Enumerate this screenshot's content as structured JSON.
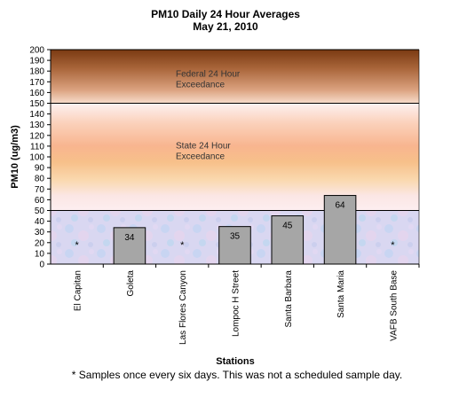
{
  "chart_data": {
    "type": "bar",
    "title": "PM10 Daily 24 Hour Averages",
    "subtitle": "May 21, 2010",
    "xlabel": "Stations",
    "ylabel": "PM10 (ug/m3)",
    "ylim": [
      0,
      200
    ],
    "ytick_step": 10,
    "categories": [
      "El Capitan",
      "Goleta",
      "Las Flores Canyon",
      "Lompoc H Street",
      "Santa Barbara",
      "Santa Maria",
      "VAFB South Base"
    ],
    "values": [
      null,
      34,
      null,
      35,
      45,
      64,
      null
    ],
    "data_labels": [
      "*",
      "34",
      "*",
      "35",
      "45",
      "64",
      "*"
    ],
    "bands": [
      {
        "from": 150,
        "to": 200,
        "label_line1": "Federal 24 Hour",
        "label_line2": "Exceedance",
        "label_y": 175
      },
      {
        "from": 50,
        "to": 150,
        "label_line1": "State 24 Hour",
        "label_line2": "Exceedance",
        "label_y": 108
      },
      {
        "from": 0,
        "to": 50,
        "label_line1": "",
        "label_line2": "",
        "label_y": 0
      }
    ],
    "bar_color": "#a6a6a6",
    "footnote": "* Samples once every six days.  This was not a scheduled sample day."
  }
}
